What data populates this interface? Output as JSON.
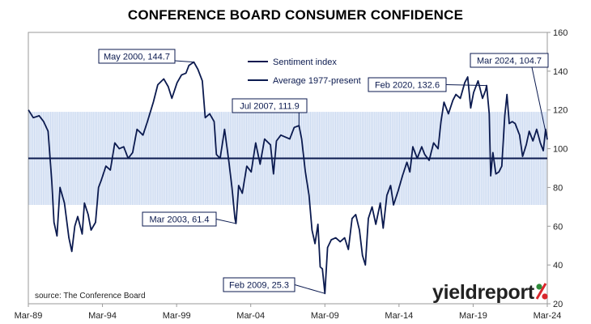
{
  "chart_data": {
    "type": "line",
    "title": "CONFERENCE BOARD CONSUMER CONFIDENCE",
    "xlabel": "",
    "ylabel": "",
    "x_ticks": [
      "Mar-89",
      "Mar-94",
      "Mar-99",
      "Mar-04",
      "Mar-09",
      "Mar-14",
      "Mar-19",
      "Mar-24"
    ],
    "x_range": [
      1989.167,
      2024.167
    ],
    "ylim": [
      20,
      160
    ],
    "y_ticks": [
      20,
      40,
      60,
      80,
      100,
      120,
      140,
      160
    ],
    "y_axis_side": "right",
    "grid": false,
    "legend_position": "top-center",
    "band": {
      "low": 71,
      "high": 119,
      "color": "#c6d6ee"
    },
    "average": {
      "name": "Average 1977-present",
      "value": 95
    },
    "series": [
      {
        "name": "Sentiment index",
        "color": "#0b1a4f",
        "points": [
          [
            1989.17,
            120
          ],
          [
            1989.5,
            116
          ],
          [
            1989.9,
            117
          ],
          [
            1990.2,
            114
          ],
          [
            1990.5,
            109
          ],
          [
            1990.75,
            83
          ],
          [
            1990.9,
            62
          ],
          [
            1991.1,
            55
          ],
          [
            1991.3,
            80
          ],
          [
            1991.6,
            72
          ],
          [
            1991.9,
            54
          ],
          [
            1992.1,
            47
          ],
          [
            1992.3,
            60
          ],
          [
            1992.5,
            65
          ],
          [
            1992.8,
            56
          ],
          [
            1992.95,
            72
          ],
          [
            1993.2,
            66
          ],
          [
            1993.4,
            58
          ],
          [
            1993.7,
            62
          ],
          [
            1993.9,
            80
          ],
          [
            1994.1,
            84
          ],
          [
            1994.4,
            91
          ],
          [
            1994.7,
            89
          ],
          [
            1995.0,
            103
          ],
          [
            1995.3,
            100
          ],
          [
            1995.6,
            101
          ],
          [
            1995.9,
            95
          ],
          [
            1996.2,
            98
          ],
          [
            1996.5,
            110
          ],
          [
            1996.9,
            107
          ],
          [
            1997.2,
            114
          ],
          [
            1997.6,
            124
          ],
          [
            1997.9,
            133
          ],
          [
            1998.3,
            136
          ],
          [
            1998.6,
            132
          ],
          [
            1998.85,
            126
          ],
          [
            1999.2,
            134
          ],
          [
            1999.5,
            138
          ],
          [
            1999.8,
            139
          ],
          [
            2000.0,
            143
          ],
          [
            2000.33,
            144.7
          ],
          [
            2000.6,
            141
          ],
          [
            2000.9,
            135
          ],
          [
            2001.1,
            116
          ],
          [
            2001.4,
            118
          ],
          [
            2001.7,
            114
          ],
          [
            2001.85,
            97
          ],
          [
            2002.1,
            95
          ],
          [
            2002.4,
            110
          ],
          [
            2002.7,
            93
          ],
          [
            2002.9,
            80
          ],
          [
            2003.1,
            64
          ],
          [
            2003.17,
            61.4
          ],
          [
            2003.35,
            81
          ],
          [
            2003.6,
            77
          ],
          [
            2003.9,
            91
          ],
          [
            2004.2,
            88
          ],
          [
            2004.5,
            103
          ],
          [
            2004.8,
            92
          ],
          [
            2005.1,
            105
          ],
          [
            2005.5,
            102
          ],
          [
            2005.7,
            87
          ],
          [
            2005.9,
            104
          ],
          [
            2006.2,
            107
          ],
          [
            2006.5,
            106
          ],
          [
            2006.8,
            105
          ],
          [
            2007.1,
            111
          ],
          [
            2007.42,
            111.9
          ],
          [
            2007.6,
            105
          ],
          [
            2007.85,
            88
          ],
          [
            2008.1,
            76
          ],
          [
            2008.3,
            58
          ],
          [
            2008.5,
            51
          ],
          [
            2008.7,
            61
          ],
          [
            2008.85,
            39
          ],
          [
            2009.0,
            38
          ],
          [
            2009.17,
            25.3
          ],
          [
            2009.35,
            49
          ],
          [
            2009.6,
            53
          ],
          [
            2009.9,
            54
          ],
          [
            2010.2,
            52
          ],
          [
            2010.5,
            54
          ],
          [
            2010.75,
            48
          ],
          [
            2011.0,
            64
          ],
          [
            2011.25,
            66
          ],
          [
            2011.5,
            58
          ],
          [
            2011.7,
            45
          ],
          [
            2011.9,
            40
          ],
          [
            2012.1,
            64
          ],
          [
            2012.35,
            70
          ],
          [
            2012.6,
            61
          ],
          [
            2012.9,
            72
          ],
          [
            2013.1,
            59
          ],
          [
            2013.35,
            76
          ],
          [
            2013.6,
            81
          ],
          [
            2013.8,
            71
          ],
          [
            2014.1,
            78
          ],
          [
            2014.4,
            86
          ],
          [
            2014.7,
            93
          ],
          [
            2014.9,
            88
          ],
          [
            2015.1,
            101
          ],
          [
            2015.4,
            95
          ],
          [
            2015.7,
            101
          ],
          [
            2015.9,
            97
          ],
          [
            2016.2,
            94
          ],
          [
            2016.5,
            103
          ],
          [
            2016.8,
            100
          ],
          [
            2017.0,
            114
          ],
          [
            2017.2,
            124
          ],
          [
            2017.5,
            118
          ],
          [
            2017.8,
            125
          ],
          [
            2018.0,
            128
          ],
          [
            2018.3,
            126
          ],
          [
            2018.6,
            134
          ],
          [
            2018.8,
            137
          ],
          [
            2019.0,
            121
          ],
          [
            2019.2,
            129
          ],
          [
            2019.5,
            135
          ],
          [
            2019.8,
            126
          ],
          [
            2020.0,
            130
          ],
          [
            2020.08,
            132.6
          ],
          [
            2020.25,
            118
          ],
          [
            2020.35,
            86
          ],
          [
            2020.5,
            98
          ],
          [
            2020.7,
            87
          ],
          [
            2020.9,
            88
          ],
          [
            2021.1,
            91
          ],
          [
            2021.3,
            117
          ],
          [
            2021.45,
            128
          ],
          [
            2021.6,
            113
          ],
          [
            2021.8,
            114
          ],
          [
            2022.0,
            113
          ],
          [
            2022.3,
            107
          ],
          [
            2022.5,
            96
          ],
          [
            2022.75,
            102
          ],
          [
            2022.95,
            109
          ],
          [
            2023.2,
            104
          ],
          [
            2023.45,
            110
          ],
          [
            2023.7,
            103
          ],
          [
            2023.9,
            99
          ],
          [
            2024.05,
            110
          ],
          [
            2024.167,
            104.7
          ]
        ]
      }
    ],
    "annotations": [
      {
        "id": "may2000",
        "text": "May 2000, 144.7",
        "x": 2000.33,
        "y": 144.7
      },
      {
        "id": "mar2003",
        "text": "Mar 2003, 61.4",
        "x": 2003.17,
        "y": 61.4
      },
      {
        "id": "jul2007",
        "text": "Jul 2007, 111.9",
        "x": 2007.42,
        "y": 111.9
      },
      {
        "id": "feb2009",
        "text": "Feb 2009, 25.3",
        "x": 2009.17,
        "y": 25.3
      },
      {
        "id": "feb2020",
        "text": "Feb 2020, 132.6",
        "x": 2020.08,
        "y": 132.6
      },
      {
        "id": "mar2024",
        "text": "Mar 2024, 104.7",
        "x": 2024.167,
        "y": 104.7
      }
    ],
    "source": "source: The Conference Board"
  },
  "logo": {
    "text": "yieldreport",
    "symbol": "%",
    "colors": [
      "#2e8b3a",
      "#d8262c"
    ]
  }
}
